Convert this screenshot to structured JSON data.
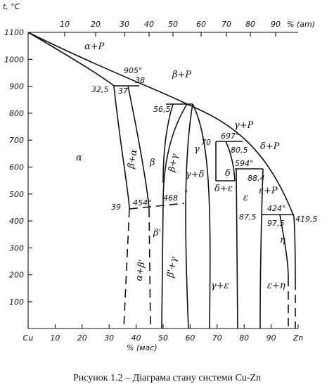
{
  "axis": {
    "y_label": "t, °C",
    "y_ticks": [
      "1100",
      "1000",
      "900",
      "800",
      "700",
      "600",
      "500",
      "400",
      "300",
      "200",
      "100"
    ],
    "x_bottom_label": "% (мас)",
    "x_bottom_ticks": [
      "Cu",
      "10",
      "20",
      "30",
      "40",
      "50",
      "60",
      "70",
      "80",
      "90",
      "Zn"
    ],
    "x_top_label": "% (am)",
    "x_top_ticks": [
      "10",
      "20",
      "30",
      "40",
      "50",
      "60",
      "70",
      "80",
      "90"
    ]
  },
  "phase_labels": {
    "alpha": "α",
    "alpha_p": "α+P",
    "beta": "β",
    "beta_alpha": "β+α",
    "beta_p": "β+P",
    "beta_gamma": "β+γ",
    "gamma": "γ",
    "gamma_p": "γ+P",
    "gamma_delta": "γ+δ",
    "delta": "δ",
    "delta_eps": "δ+ε",
    "delta_p": "δ+P",
    "eps": "ε",
    "eps_p": "ε+P",
    "eta": "η",
    "beta_prime": "β'",
    "alpha_beta_prime": "α+β'",
    "beta_prime_gamma": "β'+γ",
    "gamma_eps": "γ+ε",
    "eps_eta": "ε+η"
  },
  "point_labels": {
    "t905": "905°",
    "c32_5": "32,5",
    "c37": "37",
    "c38": "38",
    "c56_5": "56,5",
    "t697": "697°",
    "c70": "70",
    "c80_5": "80,5",
    "t594": "594°",
    "c88_4": "88,4",
    "t454": "454°",
    "t468": "468",
    "c39": "39",
    "c87_5": "87,5",
    "t424": "424°",
    "c97_5": "97,5",
    "t419_5": "419,5",
    "deg_mark": "°"
  },
  "caption": "Рисунок 1.2 – Діаграма стану системи Cu-Zn"
}
